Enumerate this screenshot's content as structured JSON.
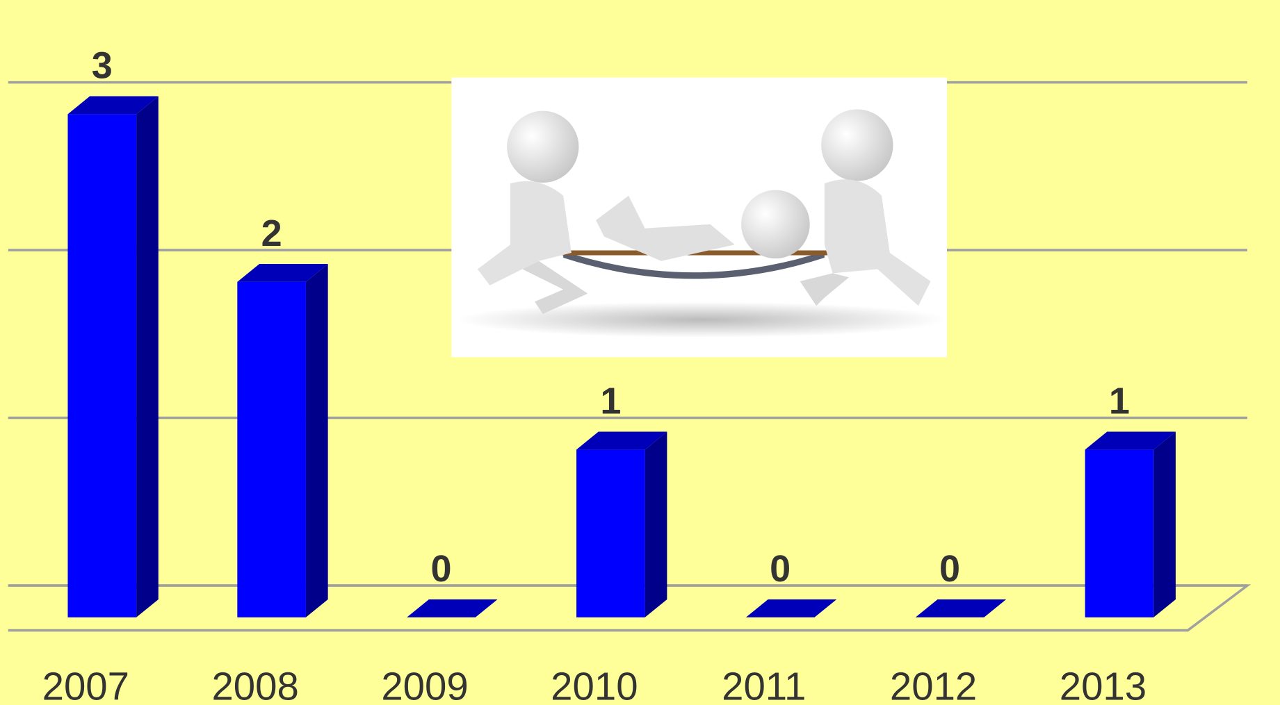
{
  "chart_data": {
    "type": "bar3d",
    "categories": [
      "2007",
      "2008",
      "2009",
      "2010",
      "2011",
      "2012",
      "2013"
    ],
    "values": [
      3,
      2,
      0,
      1,
      0,
      0,
      1
    ],
    "color": "#0000ff",
    "ylim": [
      0,
      3
    ],
    "yticks": [
      0,
      1,
      2,
      3
    ],
    "grid": true
  }
}
